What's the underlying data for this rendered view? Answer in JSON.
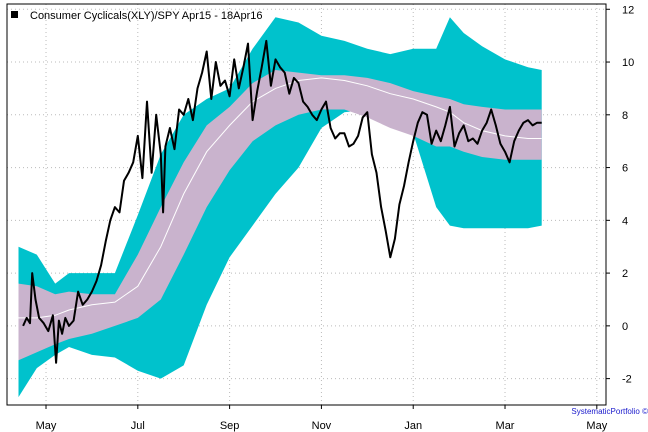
{
  "chart_data": {
    "type": "line",
    "title": "Consumer Cyclicals(XLY)/SPY Apr15 - 18Apr16",
    "legend": {
      "label": "Consumer Cyclicals(XLY)/SPY Apr15 - 18Apr16",
      "placement": "top-left"
    },
    "x_axis": {
      "labels": [
        "May",
        "Jul",
        "Sep",
        "Nov",
        "Jan",
        "Mar",
        "May"
      ],
      "label_pos": [
        0.5,
        2.5,
        4.5,
        6.5,
        8.5,
        10.5,
        12.5
      ],
      "range": [
        -0.35,
        12.7
      ]
    },
    "y_axis": {
      "ticks": [
        -2,
        0,
        2,
        4,
        6,
        8,
        10,
        12
      ],
      "range": [
        -3,
        12.2
      ],
      "position": "right"
    },
    "grid": true,
    "colors": {
      "outer_band": "#00c2cc",
      "inner_band": "#c9b3cd",
      "mean_line": "#ffffff",
      "price_line": "#000000",
      "grid": "#bbbbbb",
      "watermark": "#1a1acc"
    },
    "bands": {
      "x": [
        -0.1,
        0.3,
        0.7,
        1.0,
        1.5,
        2.0,
        2.5,
        3.0,
        3.5,
        4.0,
        4.5,
        5.0,
        5.5,
        6.0,
        6.5,
        7.0,
        7.5,
        8.0,
        8.5,
        9.0,
        9.3,
        9.6,
        10.0,
        10.5,
        11.0,
        11.3
      ],
      "outer_upper": [
        3.0,
        2.7,
        1.6,
        2.0,
        2.0,
        2.0,
        4.2,
        6.5,
        8.0,
        8.6,
        9.0,
        10.5,
        11.7,
        11.5,
        11.0,
        10.8,
        10.5,
        10.3,
        10.5,
        10.5,
        11.7,
        11.1,
        10.6,
        10.1,
        9.8,
        9.7
      ],
      "inner_upper": [
        1.6,
        1.5,
        1.2,
        1.3,
        1.2,
        1.2,
        2.7,
        4.5,
        6.2,
        7.6,
        8.3,
        9.2,
        9.7,
        9.6,
        9.5,
        9.5,
        9.4,
        9.2,
        8.9,
        8.7,
        8.6,
        8.4,
        8.3,
        8.2,
        8.2,
        8.2
      ],
      "mean": [
        0.3,
        0.3,
        0.4,
        0.6,
        0.8,
        0.9,
        1.5,
        3.0,
        5.0,
        6.6,
        7.6,
        8.5,
        9.0,
        9.3,
        9.4,
        9.3,
        9.1,
        8.8,
        8.6,
        8.3,
        8.1,
        7.7,
        7.4,
        7.2,
        7.1,
        7.1
      ],
      "inner_lower": [
        -1.3,
        -1.0,
        -0.7,
        -0.5,
        -0.3,
        0.0,
        0.3,
        1.0,
        2.7,
        4.5,
        5.9,
        7.0,
        7.6,
        8.0,
        8.2,
        8.2,
        7.9,
        7.5,
        7.2,
        6.8,
        6.8,
        6.6,
        6.4,
        6.3,
        6.3,
        6.3
      ],
      "outer_lower": [
        -2.7,
        -1.6,
        -1.1,
        -0.8,
        -1.1,
        -1.2,
        -1.7,
        -2.0,
        -1.5,
        0.8,
        2.6,
        3.8,
        5.0,
        6.0,
        7.5,
        8.1,
        8.2,
        8.2,
        7.3,
        4.5,
        3.8,
        3.7,
        3.7,
        3.7,
        3.7,
        3.8
      ]
    },
    "series": [
      {
        "x": [
          0.0,
          0.08,
          0.15,
          0.2,
          0.27,
          0.35,
          0.45,
          0.55,
          0.65,
          0.72,
          0.78,
          0.85,
          0.92,
          1.0,
          1.1,
          1.2,
          1.3,
          1.4,
          1.5,
          1.6,
          1.7,
          1.8,
          1.9,
          2.0,
          2.1,
          2.2,
          2.3,
          2.4,
          2.5,
          2.6,
          2.7,
          2.8,
          2.9,
          3.0,
          3.05,
          3.1,
          3.2,
          3.3,
          3.4,
          3.5,
          3.6,
          3.7,
          3.8,
          3.9,
          4.0,
          4.1,
          4.2,
          4.3,
          4.4,
          4.5,
          4.6,
          4.7,
          4.8,
          4.9,
          5.0,
          5.1,
          5.2,
          5.3,
          5.4,
          5.5,
          5.6,
          5.7,
          5.8,
          5.9,
          6.0,
          6.1,
          6.2,
          6.3,
          6.4,
          6.5,
          6.6,
          6.7,
          6.8,
          6.9,
          7.0,
          7.1,
          7.2,
          7.3,
          7.4,
          7.5,
          7.6,
          7.7,
          7.8,
          7.9,
          8.0,
          8.1,
          8.2,
          8.3,
          8.4,
          8.5,
          8.6,
          8.7,
          8.8,
          8.9,
          9.0,
          9.1,
          9.2,
          9.3,
          9.4,
          9.5,
          9.6,
          9.7,
          9.8,
          9.9,
          10.0,
          10.1,
          10.2,
          10.3,
          10.4,
          10.5,
          10.6,
          10.7,
          10.8,
          10.9,
          11.0,
          11.1,
          11.2,
          11.3
        ],
        "y": [
          0.0,
          0.3,
          0.1,
          2.0,
          1.0,
          0.3,
          0.1,
          -0.2,
          0.4,
          -1.4,
          0.2,
          -0.3,
          0.3,
          0.0,
          0.2,
          1.3,
          0.8,
          1.0,
          1.3,
          1.7,
          2.3,
          3.2,
          4.0,
          4.5,
          4.3,
          5.5,
          5.8,
          6.2,
          7.2,
          5.6,
          8.5,
          5.8,
          8.0,
          6.5,
          4.3,
          6.8,
          7.5,
          6.7,
          8.2,
          8.0,
          8.6,
          7.8,
          9.0,
          9.6,
          10.4,
          8.6,
          10.0,
          9.1,
          9.3,
          8.7,
          10.1,
          9.0,
          9.8,
          10.7,
          7.8,
          8.9,
          9.8,
          10.8,
          9.1,
          10.1,
          9.8,
          9.6,
          8.8,
          9.4,
          9.2,
          8.5,
          8.3,
          8.0,
          7.8,
          8.2,
          8.5,
          7.5,
          7.1,
          7.3,
          7.3,
          6.8,
          6.9,
          7.2,
          7.9,
          8.1,
          6.5,
          5.8,
          4.5,
          3.6,
          2.6,
          3.3,
          4.6,
          5.3,
          6.2,
          7.0,
          7.7,
          8.1,
          8.0,
          6.9,
          7.4,
          7.0,
          7.6,
          8.3,
          6.8,
          7.3,
          7.6,
          7.0,
          7.1,
          6.9,
          7.4,
          7.7,
          8.2,
          7.6,
          6.9,
          6.6,
          6.2,
          7.0,
          7.4,
          7.7,
          7.8,
          7.6,
          7.7,
          7.7
        ]
      }
    ]
  },
  "watermark": "SystematicPortfolio ©"
}
